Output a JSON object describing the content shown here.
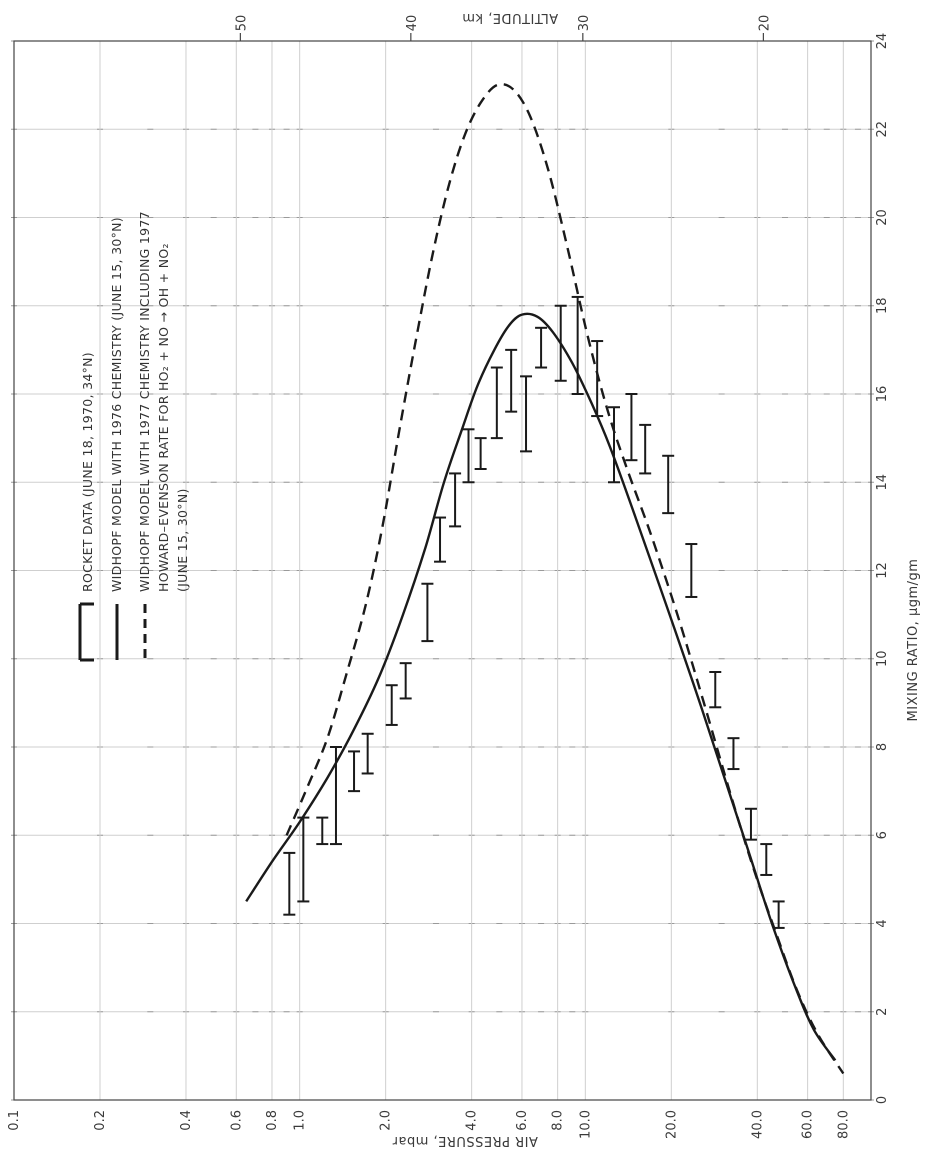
{
  "colors": {
    "ink": "#1a1a1a",
    "grid": "#cfcfcf",
    "paper": "#ffffff"
  },
  "chart_data": {
    "type": "line",
    "xlabel": "MIXING RATIO, μgm/gm",
    "xlim": [
      0,
      24
    ],
    "xticks": [
      "0",
      "2",
      "4",
      "6",
      "8",
      "10",
      "12",
      "14",
      "16",
      "18",
      "20",
      "22",
      "24"
    ],
    "ylabel": "AIR PRESSURE, mbar",
    "ylim": [
      0.1,
      100
    ],
    "yscale": "log",
    "ylabel_values": [
      0.1,
      0.2,
      0.4,
      0.6,
      0.8,
      1.0,
      2.0,
      4.0,
      6.0,
      8.0,
      10.0,
      20.0,
      40.0,
      60.0,
      80.0
    ],
    "yticks": [
      "0.1",
      "0.2",
      "0.4",
      "0.6",
      "0.8",
      "1.0",
      "2.0",
      "4.0",
      "6.0",
      "8.0",
      "10.0",
      "20.0",
      "40.0",
      "60.0",
      "80.0"
    ],
    "y2label": "ALTITUDE, km",
    "y2ticks": [
      "50",
      "40",
      "30",
      "20"
    ],
    "y2tick_pressures": [
      0.62,
      2.45,
      9.8,
      42
    ],
    "grid": true,
    "legend_position": "top-left",
    "legend": [
      "ROCKET DATA (JUNE 18, 1970, 34°N)",
      "WIDHOPF MODEL WITH 1976 CHEMISTRY (JUNE 15, 30°N)",
      "WIDHOPF MODEL WITH 1977 CHEMISTRY INCLUDING 1977",
      "HOWARD–EVENSON RATE FOR HO₂ + NO → OH + NO₂",
      "(JUNE 15, 30°N)"
    ],
    "series": [
      {
        "style": "solid",
        "x": [
          4.5,
          5.4,
          6.3,
          7.3,
          8.4,
          9.6,
          11.0,
          12.5,
          14.0,
          15.2,
          16.2,
          17.0,
          17.55,
          17.8,
          17.75,
          17.4,
          16.7,
          15.8,
          14.8,
          13.2,
          11.3,
          9.4,
          7.5,
          5.7,
          4.0,
          2.6,
          1.6,
          0.9
        ],
        "y": [
          0.65,
          0.8,
          1.0,
          1.25,
          1.55,
          1.9,
          2.3,
          2.75,
          3.2,
          3.7,
          4.2,
          4.8,
          5.4,
          6.0,
          6.8,
          7.7,
          9.0,
          10.5,
          12.2,
          15.0,
          19.0,
          24.0,
          30.0,
          37.0,
          45.0,
          54.0,
          63.0,
          75.0
        ]
      },
      {
        "style": "dashed",
        "x": [
          6.0,
          7.0,
          8.2,
          9.6,
          11.2,
          13.0,
          15.3,
          17.5,
          19.3,
          20.8,
          21.9,
          22.6,
          23.0,
          22.9,
          22.3,
          21.1,
          19.4,
          17.3,
          15.6,
          14.3,
          12.8,
          11.0,
          9.0,
          7.0,
          5.2,
          3.7,
          2.5,
          1.5,
          0.6
        ],
        "y": [
          0.9,
          1.05,
          1.25,
          1.45,
          1.7,
          1.95,
          2.25,
          2.6,
          2.95,
          3.35,
          3.8,
          4.3,
          4.9,
          5.6,
          6.4,
          7.4,
          8.6,
          10.2,
          12.0,
          14.0,
          17.0,
          21.0,
          26.0,
          32.0,
          39.0,
          47.0,
          55.0,
          65.0,
          80.0
        ]
      }
    ],
    "error_bars": [
      {
        "p": 0.92,
        "lo": 4.2,
        "hi": 5.6
      },
      {
        "p": 1.03,
        "lo": 4.5,
        "hi": 6.4
      },
      {
        "p": 1.2,
        "lo": 5.8,
        "hi": 6.4
      },
      {
        "p": 1.34,
        "lo": 5.8,
        "hi": 8.0
      },
      {
        "p": 1.55,
        "lo": 7.0,
        "hi": 7.9
      },
      {
        "p": 1.73,
        "lo": 7.4,
        "hi": 8.3
      },
      {
        "p": 2.1,
        "lo": 8.5,
        "hi": 9.4
      },
      {
        "p": 2.35,
        "lo": 9.1,
        "hi": 9.9
      },
      {
        "p": 2.8,
        "lo": 10.4,
        "hi": 11.7
      },
      {
        "p": 3.1,
        "lo": 12.2,
        "hi": 13.2
      },
      {
        "p": 3.5,
        "lo": 13.0,
        "hi": 14.2
      },
      {
        "p": 3.9,
        "lo": 14.0,
        "hi": 15.2
      },
      {
        "p": 4.3,
        "lo": 14.3,
        "hi": 15.0
      },
      {
        "p": 4.9,
        "lo": 15.0,
        "hi": 16.6
      },
      {
        "p": 5.5,
        "lo": 15.6,
        "hi": 17.0
      },
      {
        "p": 6.2,
        "lo": 14.7,
        "hi": 16.4
      },
      {
        "p": 7.0,
        "lo": 16.6,
        "hi": 17.5
      },
      {
        "p": 8.2,
        "lo": 16.3,
        "hi": 18.0
      },
      {
        "p": 9.4,
        "lo": 16.0,
        "hi": 18.2
      },
      {
        "p": 11.0,
        "lo": 15.5,
        "hi": 17.2
      },
      {
        "p": 12.6,
        "lo": 14.0,
        "hi": 15.7
      },
      {
        "p": 14.5,
        "lo": 14.5,
        "hi": 16.0
      },
      {
        "p": 16.2,
        "lo": 14.2,
        "hi": 15.3
      },
      {
        "p": 19.5,
        "lo": 13.3,
        "hi": 14.6
      },
      {
        "p": 23.5,
        "lo": 11.4,
        "hi": 12.6
      },
      {
        "p": 28.5,
        "lo": 8.9,
        "hi": 9.7
      },
      {
        "p": 33.0,
        "lo": 7.5,
        "hi": 8.2
      },
      {
        "p": 38.0,
        "lo": 5.9,
        "hi": 6.6
      },
      {
        "p": 43.0,
        "lo": 5.1,
        "hi": 5.8
      },
      {
        "p": 47.5,
        "lo": 3.9,
        "hi": 4.5
      }
    ]
  }
}
